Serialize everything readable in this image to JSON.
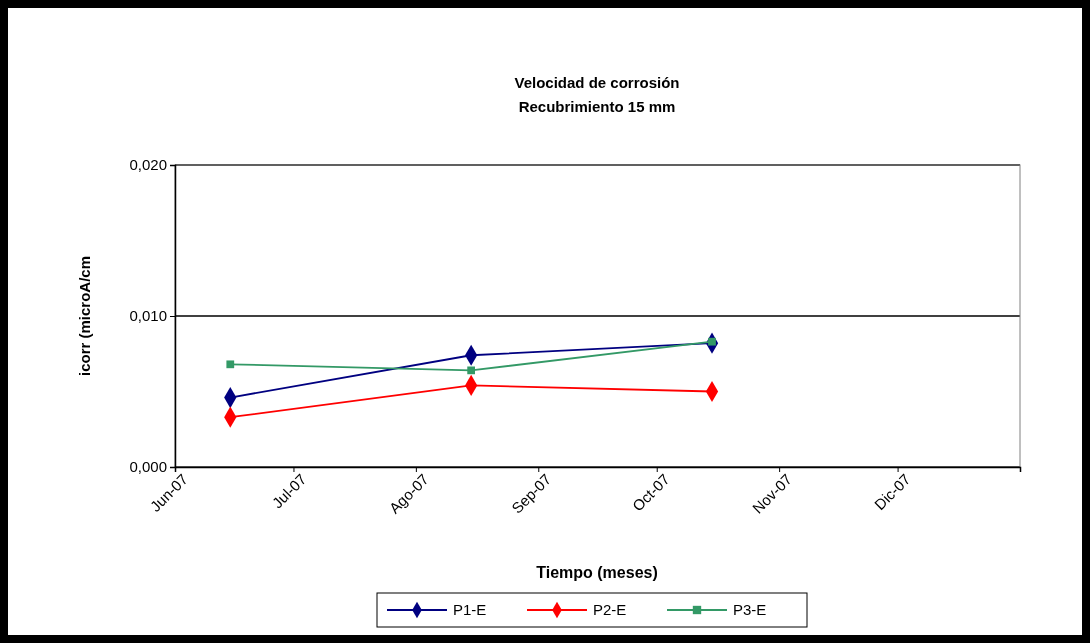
{
  "chart_data": {
    "type": "line",
    "title": "Velocidad de corrosión",
    "subtitle": "Recubrimiento 15 mm",
    "xlabel": "Tiempo (meses)",
    "ylabel": "icorr (microA/cm",
    "x": [
      "2007-06-15",
      "2007-08-15",
      "2007-10-15"
    ],
    "series": [
      {
        "name": "P1-E",
        "color": "#000080",
        "marker": "diamond",
        "values": [
          0.0046,
          0.0074,
          0.0082
        ]
      },
      {
        "name": "P2-E",
        "color": "#ff0000",
        "marker": "diamond",
        "values": [
          0.0033,
          0.0054,
          0.005
        ]
      },
      {
        "name": "P3-E",
        "color": "#339966",
        "marker": "square",
        "values": [
          0.0068,
          0.0064,
          0.0083
        ]
      }
    ],
    "xlim": [
      "2007-06-01",
      "2008-01-01"
    ],
    "xticks": [
      {
        "value": "2007-06-01",
        "label": "Jun-07"
      },
      {
        "value": "2007-07-01",
        "label": "Jul-07"
      },
      {
        "value": "2007-08-01",
        "label": "Ago-07"
      },
      {
        "value": "2007-09-01",
        "label": "Sep-07"
      },
      {
        "value": "2007-10-01",
        "label": "Oct-07"
      },
      {
        "value": "2007-11-01",
        "label": "Nov-07"
      },
      {
        "value": "2007-12-01",
        "label": "Dic-07"
      }
    ],
    "ylim": [
      0,
      0.02
    ],
    "yticks": [
      {
        "value": 0,
        "label": "0,000"
      },
      {
        "value": 0.01,
        "label": "0,010"
      },
      {
        "value": 0.02,
        "label": "0,020"
      }
    ],
    "grid": "y",
    "legend": "bottom",
    "line_style": "solid"
  }
}
